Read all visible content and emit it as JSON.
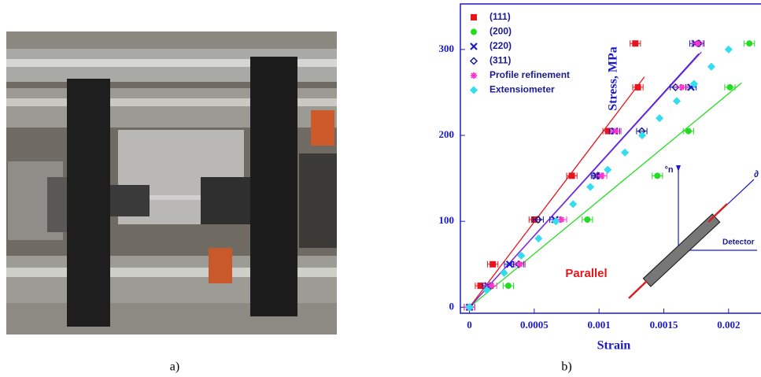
{
  "figure": {
    "panel_a_caption": "a)",
    "panel_b_caption": "b)"
  },
  "chart_data": {
    "type": "scatter",
    "xlabel": "Strain",
    "ylabel": "Stress, MPa",
    "xlim": [
      -7e-05,
      0.00225
    ],
    "ylim": [
      -7,
      353
    ],
    "xticks": [
      0,
      0.0005,
      0.001,
      0.0015,
      0.002
    ],
    "yticks": [
      0,
      100,
      200,
      300
    ],
    "series": [
      {
        "name": "(111)",
        "color": "#e8141c",
        "marker": "square",
        "xerr": 4e-05,
        "x": [
          0,
          8.5e-05,
          0.00018,
          0.0005,
          0.00079,
          0.00107,
          0.0013,
          0.00128
        ],
        "values": [
          0,
          25,
          50,
          102,
          153,
          205,
          256,
          307
        ]
      },
      {
        "name": "(200)",
        "color": "#22dd22",
        "marker": "circle",
        "xerr": 4e-05,
        "x": [
          0,
          0.0003,
          0.00091,
          0.00145,
          0.00169,
          0.00201,
          0.00216
        ],
        "values": [
          0,
          25,
          102,
          153,
          205,
          256,
          307
        ]
      },
      {
        "name": "(220)",
        "color": "#1a1acc",
        "marker": "cross",
        "xerr": 4e-05,
        "x": [
          0,
          0.00014,
          0.00031,
          0.00066,
          0.00098,
          0.00112,
          0.00171,
          0.00174
        ],
        "values": [
          0,
          25,
          50,
          102,
          153,
          205,
          256,
          307
        ]
      },
      {
        "name": "(311)",
        "color": "#1a1a99",
        "marker": "diamond",
        "xerr": 4e-05,
        "x": [
          0,
          0.00038,
          0.00053,
          0.00099,
          0.00133,
          0.00159,
          0.00177
        ],
        "values": [
          0,
          50,
          102,
          153,
          205,
          256,
          307
        ]
      },
      {
        "name": "Profile refinement",
        "color": "#ff33cc",
        "marker": "star",
        "xerr": 4e-05,
        "x": [
          0,
          0.00017,
          0.00039,
          0.00071,
          0.00102,
          0.00113,
          0.00164,
          0.00176
        ],
        "values": [
          0,
          25,
          50,
          102,
          153,
          205,
          256,
          307
        ]
      },
      {
        "name": "Extensiometer",
        "color": "#33ddee",
        "marker": "filled-diamond",
        "x": [
          0,
          0.000133,
          0.000267,
          0.0004,
          0.000533,
          0.000667,
          0.0008,
          0.000933,
          0.001067,
          0.0012,
          0.001333,
          0.001467,
          0.0016,
          0.001733,
          0.001867,
          0.002
        ],
        "values": [
          0,
          20,
          40,
          60,
          80,
          100,
          120,
          140,
          160,
          180,
          200,
          220,
          240,
          260,
          280,
          300
        ]
      }
    ],
    "fits": [
      {
        "color": "#e8141c",
        "x": [
          0,
          0.00135
        ],
        "values": [
          0,
          268
        ]
      },
      {
        "color": "#22dd22",
        "x": [
          0,
          0.0021
        ],
        "values": [
          0,
          261
        ]
      },
      {
        "color": "#1a1acc",
        "x": [
          0,
          0.00177
        ],
        "values": [
          0,
          295
        ]
      },
      {
        "color": "#8a2be2",
        "x": [
          0,
          0.00179
        ],
        "values": [
          0,
          297
        ]
      }
    ],
    "annotations": [
      "Parallel",
      "°n",
      "Detector",
      "∂"
    ]
  }
}
